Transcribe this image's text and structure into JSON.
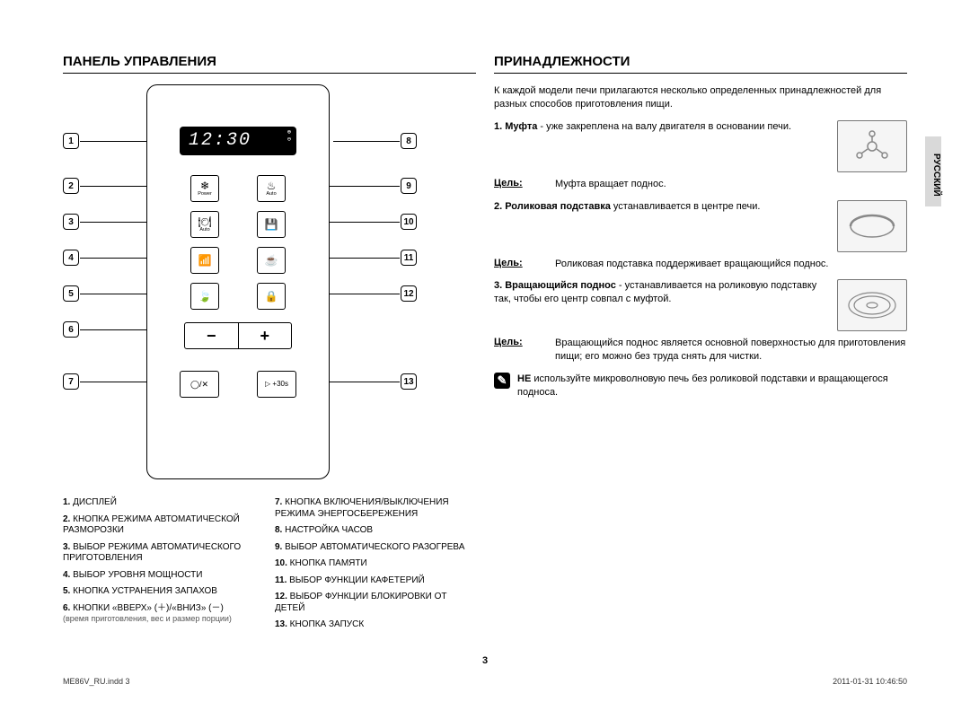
{
  "left": {
    "title": "ПАНЕЛЬ УПРАВЛЕНИЯ",
    "display_time": "12:30",
    "buttons": {
      "r1a_sub": "Power",
      "r1b_sub": "Auto",
      "r1a_glyph": "❄",
      "r1b_glyph": "♨",
      "r2a_glyph": "🍽",
      "r2a_sub": "Auto",
      "r2b_glyph": "💾",
      "r3a_glyph": "📶",
      "r3b_glyph": "☕",
      "r4a_glyph": "🍃",
      "r4b_glyph": "🔒",
      "bottom_a_glyph": "◯/✕",
      "bottom_b_glyph": "▷ +30s"
    },
    "callouts": {
      "n1": "1",
      "n2": "2",
      "n3": "3",
      "n4": "4",
      "n5": "5",
      "n6": "6",
      "n7": "7",
      "n8": "8",
      "n9": "9",
      "n10": "10",
      "n11": "11",
      "n12": "12",
      "n13": "13"
    },
    "legend": [
      {
        "num": "1.",
        "text": "ДИСПЛЕЙ"
      },
      {
        "num": "2.",
        "text": "КНОПКА РЕЖИМА АВТОМАТИЧЕСКОЙ РАЗМОРОЗКИ"
      },
      {
        "num": "3.",
        "text": "ВЫБОР РЕЖИМА АВТОМАТИЧЕСКОГО ПРИГОТОВЛЕНИЯ"
      },
      {
        "num": "4.",
        "text": "ВЫБОР УРОВНЯ МОЩНОСТИ"
      },
      {
        "num": "5.",
        "text": "КНОПКА УСТРАНЕНИЯ ЗАПАХОВ"
      },
      {
        "num": "6.",
        "text": "КНОПКИ «ВВЕРХ» (＋)/«ВНИЗ» (－)",
        "note": "(время приготовления, вес и размер порции)"
      },
      {
        "num": "7.",
        "text": "КНОПКА ВКЛЮЧЕНИЯ/ВЫКЛЮЧЕНИЯ РЕЖИМА ЭНЕРГОСБЕРЕЖЕНИЯ"
      },
      {
        "num": "8.",
        "text": "НАСТРОЙКА ЧАСОВ"
      },
      {
        "num": "9.",
        "text": "ВЫБОР АВТОМАТИЧЕСКОГО РАЗОГРЕВА"
      },
      {
        "num": "10.",
        "text": "КНОПКА ПАМЯТИ"
      },
      {
        "num": "11.",
        "text": "ВЫБОР ФУНКЦИИ КАФЕТЕРИЙ"
      },
      {
        "num": "12.",
        "text": "ВЫБОР ФУНКЦИИ БЛОКИРОВКИ ОТ ДЕТЕЙ"
      },
      {
        "num": "13.",
        "text": "КНОПКА ЗАПУСК"
      }
    ]
  },
  "right": {
    "title": "ПРИНАДЛЕЖНОСТИ",
    "intro": "К каждой модели печи прилагаются несколько определенных принадлежностей для разных способов приготовления пищи.",
    "items": [
      {
        "num": "1.",
        "name": "Муфта",
        "desc": " - уже закреплена на валу двигателя в основании печи.",
        "purpose_label": "Цель:",
        "purpose": "Муфта вращает поднос."
      },
      {
        "num": "2.",
        "name": "Роликовая подставка",
        "desc": " устанавливается в центре печи.",
        "purpose_label": "Цель:",
        "purpose": "Роликовая подставка поддерживает вращающийся поднос."
      },
      {
        "num": "3.",
        "name": "Вращающийся поднос",
        "desc": " - устанавливается на роликовую подставку так, чтобы его центр совпал с муфтой.",
        "purpose_label": "Цель:",
        "purpose": "Вращающийся поднос является основной поверхностью для приготовления пищи; его можно без труда снять для чистки."
      }
    ],
    "warning_bold": "НЕ",
    "warning_text": " используйте микроволновую печь без роликовой подставки и вращающегося подноса."
  },
  "lang_tab": "РУССКИЙ",
  "page_number": "3",
  "footer_left": "ME86V_RU.indd   3",
  "footer_right": "2011-01-31   10:46:50"
}
